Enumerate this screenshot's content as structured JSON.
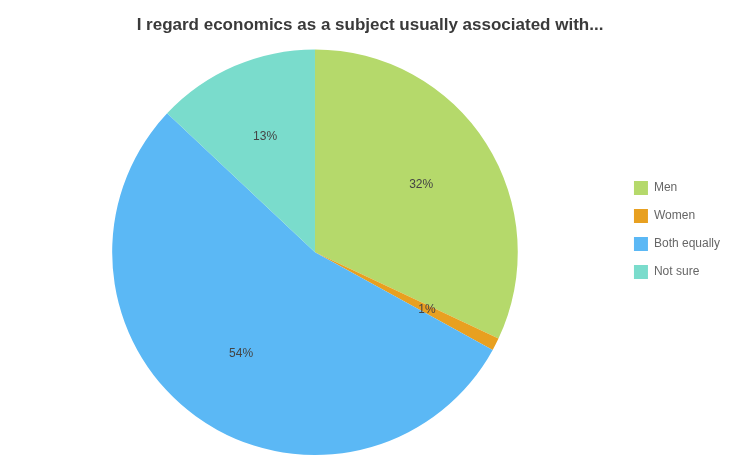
{
  "chart_data": {
    "type": "pie",
    "title": "I regard economics as a subject usually associated with...",
    "categories": [
      "Men",
      "Women",
      "Both equally",
      "Not sure"
    ],
    "values": [
      32,
      1,
      54,
      13
    ],
    "value_labels": [
      "32%",
      "1%",
      "54%",
      "13%"
    ],
    "colors": [
      "#b5d96b",
      "#e8a020",
      "#5bb8f5",
      "#7adccc"
    ],
    "data_labels": true,
    "legend": "right"
  }
}
